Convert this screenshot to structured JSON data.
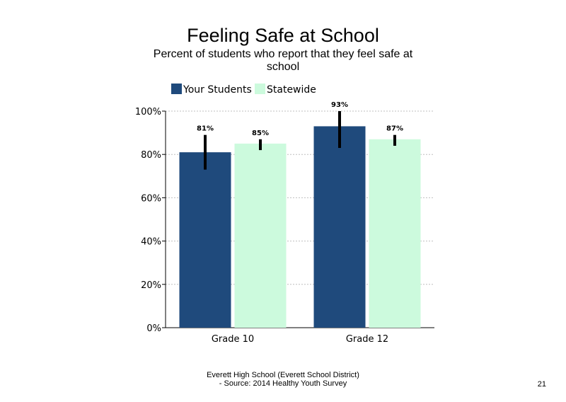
{
  "slide": {
    "title": "Feeling Safe at School",
    "subtitle": "Percent of students  who report that they feel safe at school",
    "footer_line1": "Everett High  School (Everett School District)",
    "footer_line2": "- Source: 2014 Healthy  Youth Survey",
    "page_number": "21"
  },
  "chart_data": {
    "type": "bar",
    "title": "Feeling Safe at School",
    "subtitle": "Percent of students  who report that they feel safe at school",
    "categories": [
      "Grade 10",
      "Grade 12"
    ],
    "series": [
      {
        "name": "Your Students",
        "color": "#1f4a7c",
        "values": [
          81,
          93
        ],
        "labels": [
          "81%",
          "93%"
        ],
        "error_low": [
          73,
          83
        ],
        "error_high": [
          89,
          100
        ]
      },
      {
        "name": "Statewide",
        "color": "#ccfadd",
        "values": [
          85,
          87
        ],
        "labels": [
          "85%",
          "87%"
        ],
        "error_low": [
          82,
          84
        ],
        "error_high": [
          87,
          89
        ]
      }
    ],
    "ylim": [
      0,
      100
    ],
    "yticks": [
      0,
      20,
      40,
      60,
      80,
      100
    ],
    "ytick_labels": [
      "0%",
      "20%",
      "40%",
      "60%",
      "80%",
      "100%"
    ],
    "grid": "horizontal dashed",
    "legend_position": "top-left",
    "xlabel": "",
    "ylabel": ""
  }
}
